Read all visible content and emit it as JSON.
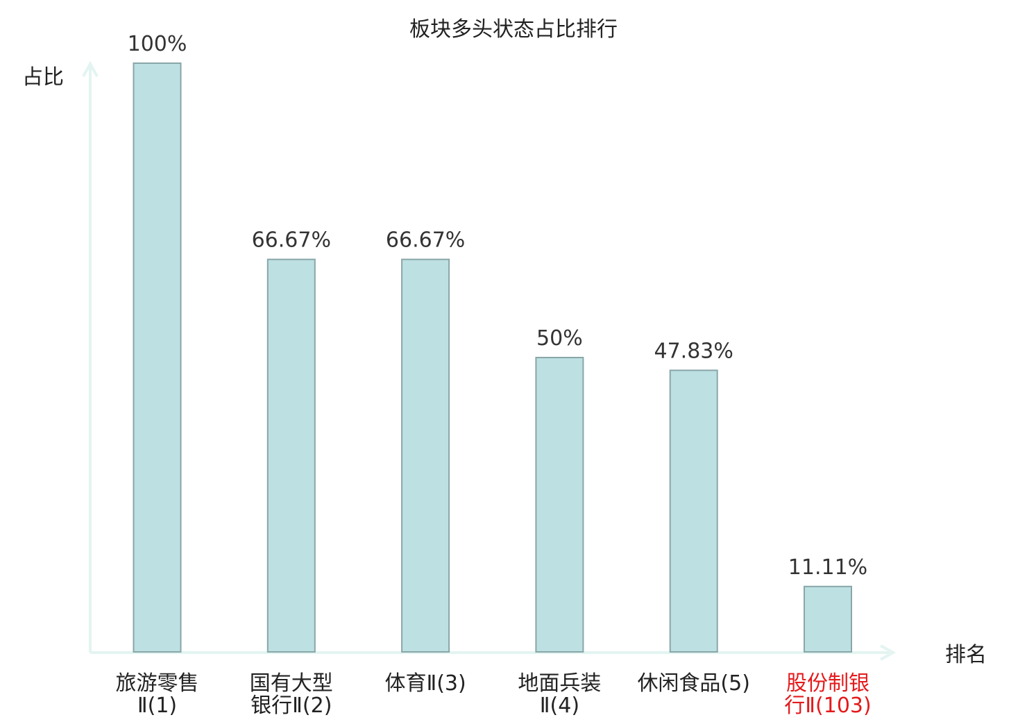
{
  "chart_data": {
    "type": "bar",
    "title": "板块多头状态占比排行",
    "ylabel": "占比",
    "xlabel": "排名",
    "ylim": [
      0,
      100
    ],
    "categories": [
      [
        "旅游零售",
        "Ⅱ(1)"
      ],
      [
        "国有大型",
        "银行Ⅱ(2)"
      ],
      [
        "体育Ⅱ(3)"
      ],
      [
        "地面兵装",
        "Ⅱ(4)"
      ],
      [
        "休闲食品(5)"
      ],
      [
        "股份制银",
        "行Ⅱ(103)"
      ]
    ],
    "values": [
      100,
      66.67,
      66.67,
      50,
      47.83,
      11.11
    ],
    "value_labels": [
      "100%",
      "66.67%",
      "66.67%",
      "50%",
      "47.83%",
      "11.11%"
    ],
    "highlighted_index": 5,
    "colors": {
      "bar_fill": "#bde0e2",
      "bar_stroke": "#89a6a8",
      "axis": "#e3f4f1",
      "text": "#333333",
      "highlight_text": "#e41a1c"
    }
  }
}
